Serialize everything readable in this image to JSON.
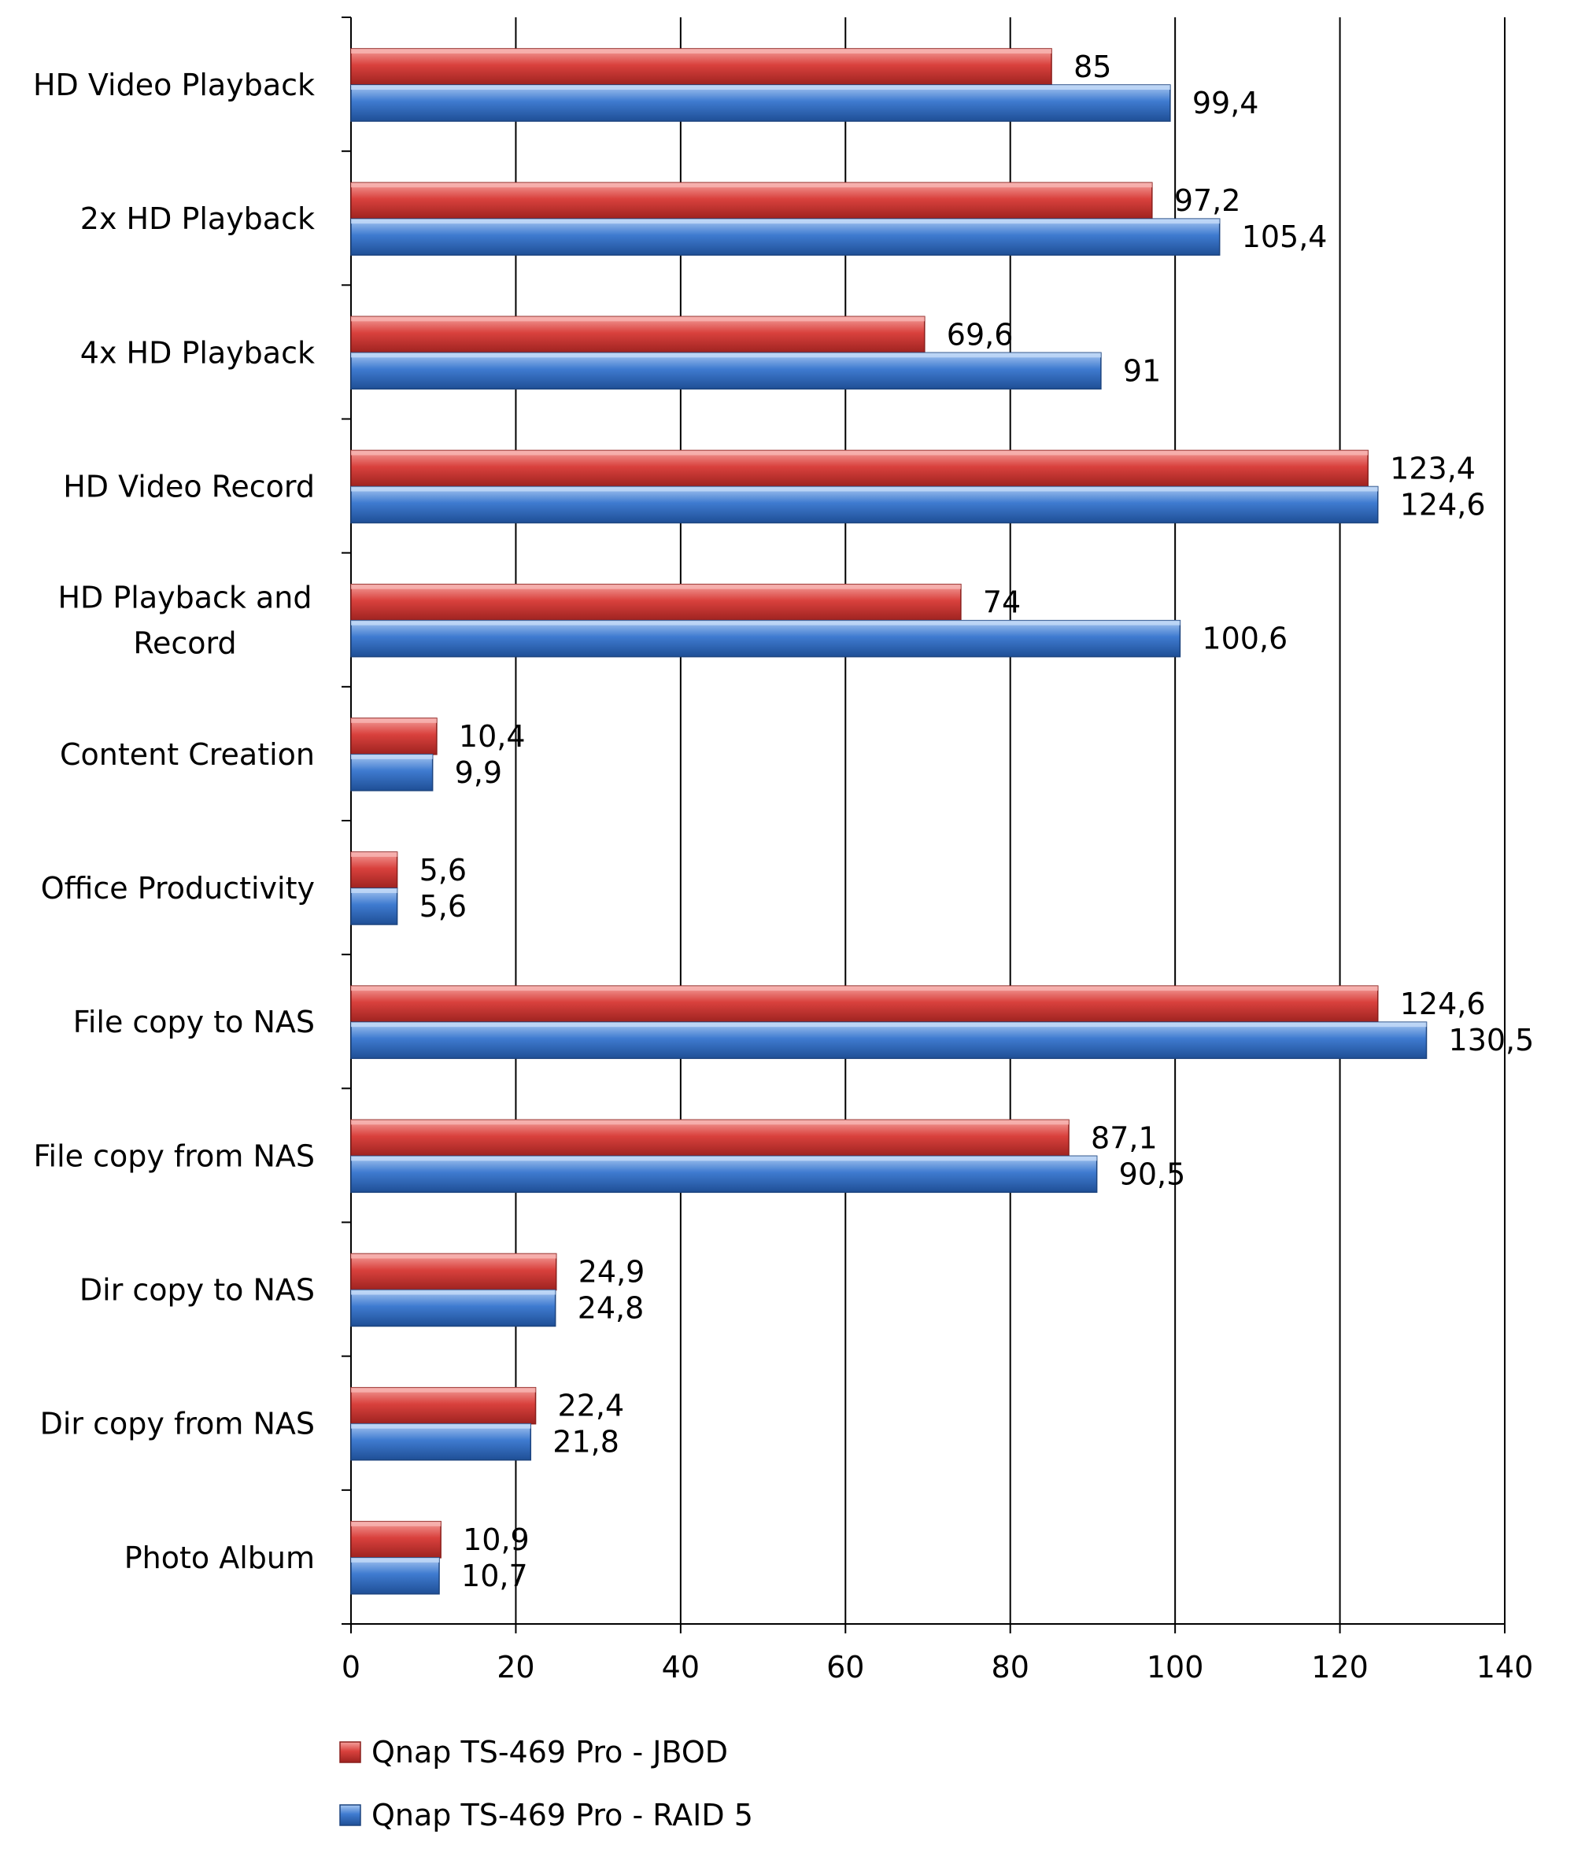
{
  "chart_data": {
    "type": "bar",
    "orientation": "horizontal",
    "title": "",
    "xlabel": "",
    "ylabel": "",
    "xlim": [
      0,
      140
    ],
    "x_ticks": [
      "0",
      "20",
      "40",
      "60",
      "80",
      "100",
      "120",
      "140"
    ],
    "grid": true,
    "legend_position": "bottom",
    "categories": [
      "HD Video Playback",
      "2x HD Playback",
      "4x HD Playback",
      "HD Video Record",
      "HD Playback and Record",
      "Content Creation",
      "Office Productivity",
      "File copy to NAS",
      "File copy from NAS",
      "Dir copy to NAS",
      "Dir copy from NAS",
      "Photo Album"
    ],
    "category_lines": [
      [
        "HD Video Playback"
      ],
      [
        "2x HD Playback"
      ],
      [
        "4x HD Playback"
      ],
      [
        "HD Video Record"
      ],
      [
        "HD Playback and",
        "Record"
      ],
      [
        "Content Creation"
      ],
      [
        "Office Productivity"
      ],
      [
        "File copy to NAS"
      ],
      [
        "File copy from NAS"
      ],
      [
        "Dir copy to NAS"
      ],
      [
        "Dir copy from NAS"
      ],
      [
        "Photo Album"
      ]
    ],
    "series": [
      {
        "name": "Qnap TS-469 Pro - JBOD",
        "color": "#d9413d",
        "values": [
          85,
          97.2,
          69.6,
          123.4,
          74,
          10.4,
          5.6,
          124.6,
          87.1,
          24.9,
          22.4,
          10.9
        ],
        "labels": [
          "85",
          "97,2",
          "69,6",
          "123,4",
          "74",
          "10,4",
          "5,6",
          "124,6",
          "87,1",
          "24,9",
          "22,4",
          "10,9"
        ]
      },
      {
        "name": "Qnap TS-469 Pro - RAID 5",
        "color": "#3f7bd0",
        "values": [
          99.4,
          105.4,
          91,
          124.6,
          100.6,
          9.9,
          5.6,
          130.5,
          90.5,
          24.8,
          21.8,
          10.7
        ],
        "labels": [
          "99,4",
          "105,4",
          "91",
          "124,6",
          "100,6",
          "9,9",
          "5,6",
          "130,5",
          "90,5",
          "24,8",
          "21,8",
          "10,7"
        ]
      }
    ]
  }
}
